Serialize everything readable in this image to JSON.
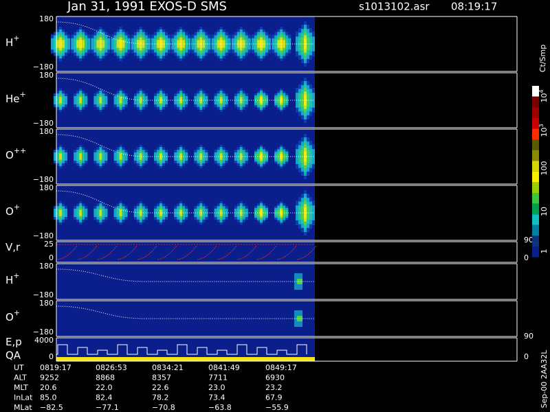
{
  "header": {
    "title": "Jan 31, 1991   EXOS-D SMS",
    "file": "s1013102.asr",
    "time": "08:19:17"
  },
  "panels": [
    {
      "label": "H",
      "sup": "+",
      "ticks": [
        "180",
        "−180"
      ]
    },
    {
      "label": "He",
      "sup": "+",
      "ticks": [
        "180",
        "−180"
      ]
    },
    {
      "label": "O",
      "sup": "++",
      "ticks": [
        "180",
        "−180"
      ]
    },
    {
      "label": "O",
      "sup": "+",
      "ticks": [
        "180",
        "−180"
      ]
    },
    {
      "label": "V,r",
      "ticks": [
        "25",
        "0"
      ],
      "right_ticks": [
        "90",
        "0"
      ]
    },
    {
      "label": "H",
      "sup": "+",
      "ticks": [
        "180",
        "−180"
      ]
    },
    {
      "label": "O",
      "sup": "+",
      "ticks": [
        "180",
        "−180"
      ]
    },
    {
      "label": "E,p",
      "label2": "QA",
      "ticks": [
        "4000",
        "0"
      ],
      "right_ticks": [
        "90",
        "0"
      ]
    }
  ],
  "colorbar": {
    "unit": "Ct/Smp",
    "labels": [
      {
        "base": "10",
        "exp": "4"
      },
      {
        "base": "10",
        "exp": "3"
      },
      {
        "base": "100"
      },
      {
        "base": "10"
      },
      {
        "base": "1"
      }
    ]
  },
  "table": {
    "rows": [
      {
        "label": "UT",
        "values": [
          "0819:17",
          "0826:53",
          "0834:21",
          "0841:49",
          "0849:17"
        ]
      },
      {
        "label": "ALT",
        "values": [
          "9252",
          "8868",
          "8357",
          "7711",
          "6930"
        ]
      },
      {
        "label": "MLT",
        "values": [
          "20.6",
          "22.0",
          "22.6",
          "23.0",
          "23.2"
        ]
      },
      {
        "label": "InLat",
        "values": [
          "85.0",
          "82.4",
          "78.2",
          "73.4",
          "67.9"
        ]
      },
      {
        "label": "MLat",
        "values": [
          "−82.5",
          "−77.1",
          "−70.8",
          "−63.8",
          "−55.9"
        ]
      }
    ]
  },
  "footer": "Sep-00  2AA32L"
}
